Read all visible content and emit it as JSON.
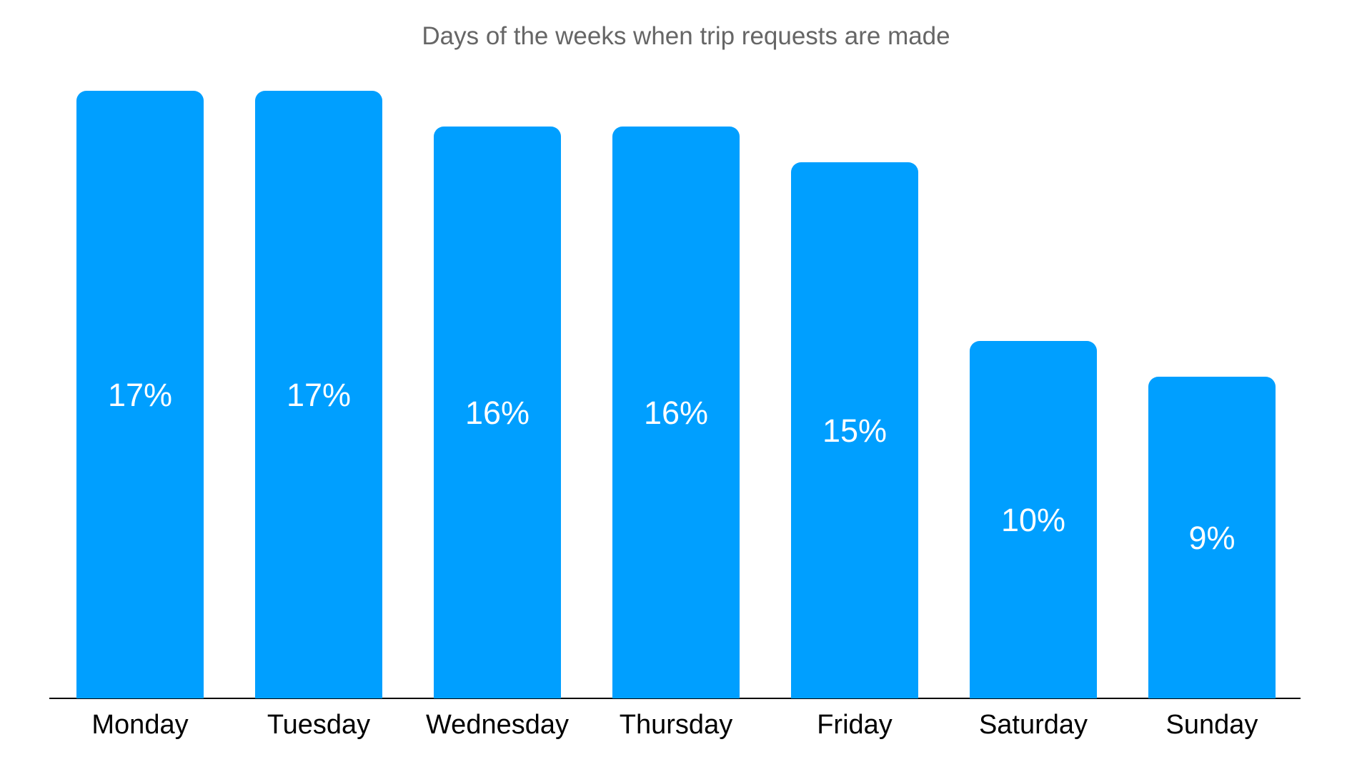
{
  "title": "Days of the weeks when trip requests are made",
  "chart_data": {
    "type": "bar",
    "title": "Days of the weeks when trip requests are made",
    "categories": [
      "Monday",
      "Tuesday",
      "Wednesday",
      "Thursday",
      "Friday",
      "Saturday",
      "Sunday"
    ],
    "values": [
      17,
      17,
      16,
      16,
      15,
      10,
      9
    ],
    "value_labels": [
      "17%",
      "17%",
      "16%",
      "16%",
      "15%",
      "10%",
      "9%"
    ],
    "unit": "%",
    "xlabel": "",
    "ylabel": "",
    "ylim": [
      0,
      17
    ],
    "grid": false,
    "legend": false,
    "value_label_position": "center-of-bar",
    "colors": {
      "bar": "#009FFF",
      "value_label": "#FFFFFF",
      "title": "#666666",
      "category_label": "#000000",
      "axis_line": "#000000",
      "background": "#FFFFFF"
    }
  }
}
